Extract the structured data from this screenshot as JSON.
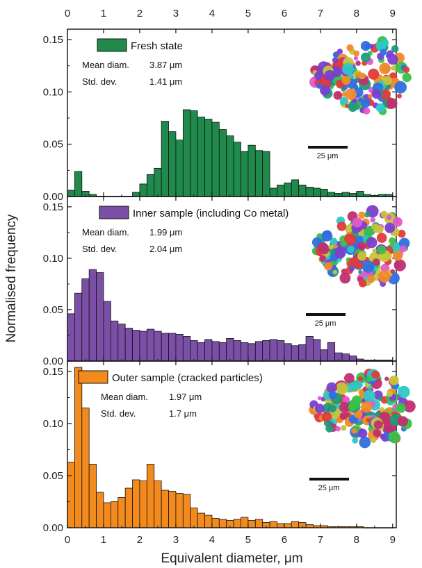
{
  "chart_data": {
    "type": "bar",
    "xlabel": "Equivalent diameter, μm",
    "ylabel": "Normalised frequency",
    "xlim": [
      0,
      9.1
    ],
    "ylim": [
      0,
      0.16
    ],
    "xticks": [
      0,
      1,
      2,
      3,
      4,
      5,
      6,
      7,
      8,
      9
    ],
    "xtick_labels": [
      "0",
      "1",
      "2",
      "3",
      "4",
      "5",
      "6",
      "7",
      "8",
      "9"
    ],
    "yticks": [
      0.0,
      0.05,
      0.1,
      0.15
    ],
    "ytick_labels": [
      "0.00",
      "0.05",
      "0.10",
      "0.15"
    ],
    "bin_width": 0.2,
    "panels": [
      {
        "name": "Fresh state",
        "color": "#1f8a4c",
        "mean_label": "Mean diam.",
        "mean_value": "3.87 μm",
        "std_label": "Std. dev.",
        "std_value": "1.41 μm",
        "scale_label": "25 μm",
        "x": [
          0.1,
          0.3,
          0.5,
          0.7,
          0.9,
          1.1,
          1.3,
          1.5,
          1.7,
          1.9,
          2.1,
          2.3,
          2.5,
          2.7,
          2.9,
          3.1,
          3.3,
          3.5,
          3.7,
          3.9,
          4.1,
          4.3,
          4.5,
          4.7,
          4.9,
          5.1,
          5.3,
          5.5,
          5.7,
          5.9,
          6.1,
          6.3,
          6.5,
          6.7,
          6.9,
          7.1,
          7.3,
          7.5,
          7.7,
          7.9,
          8.1,
          8.3,
          8.5,
          8.7,
          8.9
        ],
        "values": [
          0.006,
          0.024,
          0.005,
          0.002,
          0,
          0,
          0,
          0,
          0,
          0.004,
          0.012,
          0.021,
          0.027,
          0.072,
          0.062,
          0.054,
          0.083,
          0.082,
          0.076,
          0.074,
          0.071,
          0.064,
          0.058,
          0.052,
          0.043,
          0.049,
          0.044,
          0.043,
          0.008,
          0.011,
          0.013,
          0.016,
          0.011,
          0.009,
          0.008,
          0.007,
          0.004,
          0.003,
          0.004,
          0.003,
          0.005,
          0.002,
          0.001,
          0.002,
          0.002
        ]
      },
      {
        "name": "Inner sample (including Co metal)",
        "color": "#7b4fa6",
        "mean_label": "Mean diam.",
        "mean_value": "1.99 μm",
        "std_label": "Std. dev.",
        "std_value": "2.04 μm",
        "scale_label": "25 μm",
        "x": [
          0.1,
          0.3,
          0.5,
          0.7,
          0.9,
          1.1,
          1.3,
          1.5,
          1.7,
          1.9,
          2.1,
          2.3,
          2.5,
          2.7,
          2.9,
          3.1,
          3.3,
          3.5,
          3.7,
          3.9,
          4.1,
          4.3,
          4.5,
          4.7,
          4.9,
          5.1,
          5.3,
          5.5,
          5.7,
          5.9,
          6.1,
          6.3,
          6.5,
          6.7,
          6.9,
          7.1,
          7.3,
          7.5,
          7.7,
          7.9,
          8.1,
          8.3,
          8.5,
          8.7,
          8.9
        ],
        "values": [
          0.046,
          0.066,
          0.08,
          0.089,
          0.086,
          0.058,
          0.039,
          0.036,
          0.032,
          0.03,
          0.029,
          0.031,
          0.029,
          0.027,
          0.027,
          0.026,
          0.024,
          0.02,
          0.018,
          0.021,
          0.019,
          0.018,
          0.022,
          0.02,
          0.018,
          0.017,
          0.019,
          0.02,
          0.021,
          0.02,
          0.017,
          0.015,
          0.016,
          0.024,
          0.021,
          0.011,
          0.018,
          0.008,
          0.007,
          0.005,
          0.002,
          0.001,
          0.001,
          0.001,
          0.001
        ]
      },
      {
        "name": "Outer sample (cracked particles)",
        "color": "#f28a1e",
        "mean_label": "Mean diam.",
        "mean_value": "1.97 μm",
        "std_label": "Std. dev.",
        "std_value": "1.7 μm",
        "scale_label": "25 μm",
        "x": [
          0.1,
          0.3,
          0.5,
          0.7,
          0.9,
          1.1,
          1.3,
          1.5,
          1.7,
          1.9,
          2.1,
          2.3,
          2.5,
          2.7,
          2.9,
          3.1,
          3.3,
          3.5,
          3.7,
          3.9,
          4.1,
          4.3,
          4.5,
          4.7,
          4.9,
          5.1,
          5.3,
          5.5,
          5.7,
          5.9,
          6.1,
          6.3,
          6.5,
          6.7,
          6.9,
          7.1,
          7.3,
          7.5,
          7.7,
          7.9,
          8.1,
          8.3,
          8.5,
          8.7,
          8.9
        ],
        "values": [
          0.063,
          0.154,
          0.115,
          0.061,
          0.034,
          0.024,
          0.025,
          0.029,
          0.038,
          0.046,
          0.045,
          0.061,
          0.045,
          0.036,
          0.035,
          0.033,
          0.032,
          0.019,
          0.014,
          0.012,
          0.009,
          0.008,
          0.007,
          0.008,
          0.01,
          0.007,
          0.008,
          0.005,
          0.006,
          0.004,
          0.004,
          0.006,
          0.005,
          0.003,
          0.002,
          0.002,
          0.001,
          0.001,
          0.001,
          0.001,
          0.001,
          0,
          0,
          0,
          0
        ]
      }
    ]
  }
}
